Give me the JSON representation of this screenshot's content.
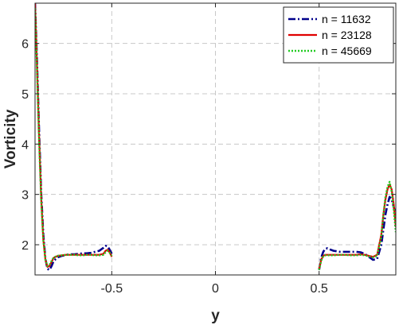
{
  "chart_data": {
    "type": "line",
    "title": "",
    "xlabel": "y",
    "ylabel": "Vorticity",
    "xlim": [
      -0.87,
      0.87
    ],
    "ylim": [
      1.4,
      6.8
    ],
    "x_ticks": [
      -0.5,
      0,
      0.5
    ],
    "x_tick_labels": [
      "-0.5",
      "0",
      "0.5"
    ],
    "y_ticks": [
      2,
      3,
      4,
      5,
      6
    ],
    "y_tick_labels": [
      "2",
      "3",
      "4",
      "5",
      "6"
    ],
    "grid": true,
    "legend_position": "top-right",
    "series": [
      {
        "name": "n = 11632",
        "color": "#00008b",
        "style": "dashdot",
        "segments": [
          {
            "x": [
              -0.87,
              -0.86,
              -0.85,
              -0.84,
              -0.83,
              -0.82,
              -0.81,
              -0.8,
              -0.79,
              -0.78,
              -0.76,
              -0.74,
              -0.72,
              -0.7,
              -0.68,
              -0.66,
              -0.64,
              -0.62,
              -0.6,
              -0.58,
              -0.56,
              -0.54,
              -0.53,
              -0.52,
              -0.51,
              -0.5
            ],
            "y": [
              6.8,
              5.6,
              4.2,
              3.0,
              2.2,
              1.72,
              1.52,
              1.5,
              1.58,
              1.68,
              1.75,
              1.78,
              1.8,
              1.81,
              1.81,
              1.82,
              1.83,
              1.83,
              1.84,
              1.86,
              1.88,
              1.94,
              1.98,
              1.97,
              1.9,
              1.82
            ]
          },
          {
            "x": [
              0.5,
              0.51,
              0.52,
              0.53,
              0.54,
              0.55,
              0.57,
              0.6,
              0.62,
              0.65,
              0.68,
              0.7,
              0.72,
              0.74,
              0.76,
              0.78,
              0.8,
              0.81,
              0.82,
              0.83,
              0.84,
              0.85,
              0.86,
              0.87
            ],
            "y": [
              1.5,
              1.74,
              1.86,
              1.92,
              1.93,
              1.91,
              1.88,
              1.86,
              1.86,
              1.86,
              1.86,
              1.85,
              1.82,
              1.76,
              1.7,
              1.72,
              2.0,
              2.3,
              2.6,
              2.8,
              2.95,
              2.9,
              2.75,
              2.6
            ]
          }
        ]
      },
      {
        "name": "n = 23128",
        "color": "#e00000",
        "style": "solid",
        "segments": [
          {
            "x": [
              -0.87,
              -0.86,
              -0.85,
              -0.84,
              -0.83,
              -0.82,
              -0.81,
              -0.8,
              -0.79,
              -0.78,
              -0.76,
              -0.74,
              -0.72,
              -0.7,
              -0.68,
              -0.66,
              -0.64,
              -0.62,
              -0.6,
              -0.58,
              -0.56,
              -0.54,
              -0.53,
              -0.52,
              -0.51,
              -0.5
            ],
            "y": [
              6.8,
              5.5,
              4.1,
              2.9,
              2.1,
              1.7,
              1.56,
              1.58,
              1.66,
              1.74,
              1.78,
              1.79,
              1.8,
              1.8,
              1.8,
              1.8,
              1.8,
              1.8,
              1.8,
              1.8,
              1.8,
              1.82,
              1.88,
              1.9,
              1.85,
              1.76
            ]
          },
          {
            "x": [
              0.5,
              0.51,
              0.52,
              0.53,
              0.54,
              0.55,
              0.57,
              0.6,
              0.62,
              0.65,
              0.68,
              0.7,
              0.72,
              0.74,
              0.76,
              0.78,
              0.8,
              0.81,
              0.82,
              0.83,
              0.84,
              0.85,
              0.86,
              0.87
            ],
            "y": [
              1.52,
              1.7,
              1.78,
              1.8,
              1.8,
              1.8,
              1.8,
              1.8,
              1.8,
              1.8,
              1.8,
              1.81,
              1.8,
              1.78,
              1.76,
              1.8,
              2.2,
              2.6,
              2.9,
              3.1,
              3.2,
              3.1,
              2.8,
              2.35
            ]
          }
        ]
      },
      {
        "name": "n = 45669",
        "color": "#22cc22",
        "style": "dotted",
        "segments": [
          {
            "x": [
              -0.87,
              -0.86,
              -0.85,
              -0.84,
              -0.83,
              -0.82,
              -0.81,
              -0.8,
              -0.79,
              -0.78,
              -0.76,
              -0.74,
              -0.72,
              -0.7,
              -0.68,
              -0.66,
              -0.64,
              -0.62,
              -0.6,
              -0.58,
              -0.56,
              -0.54,
              -0.53,
              -0.52,
              -0.51,
              -0.5
            ],
            "y": [
              6.7,
              5.4,
              4.0,
              2.85,
              2.08,
              1.7,
              1.58,
              1.6,
              1.68,
              1.75,
              1.78,
              1.79,
              1.8,
              1.8,
              1.8,
              1.79,
              1.79,
              1.8,
              1.8,
              1.79,
              1.79,
              1.8,
              1.85,
              1.88,
              1.84,
              1.78
            ]
          },
          {
            "x": [
              0.5,
              0.51,
              0.52,
              0.53,
              0.54,
              0.55,
              0.57,
              0.6,
              0.62,
              0.65,
              0.68,
              0.7,
              0.72,
              0.74,
              0.76,
              0.78,
              0.8,
              0.81,
              0.82,
              0.83,
              0.84,
              0.85,
              0.86,
              0.87
            ],
            "y": [
              1.5,
              1.68,
              1.77,
              1.79,
              1.79,
              1.79,
              1.79,
              1.8,
              1.8,
              1.79,
              1.79,
              1.8,
              1.79,
              1.77,
              1.75,
              1.78,
              2.15,
              2.6,
              2.95,
              3.15,
              3.25,
              3.05,
              2.7,
              2.25
            ]
          }
        ]
      }
    ]
  }
}
